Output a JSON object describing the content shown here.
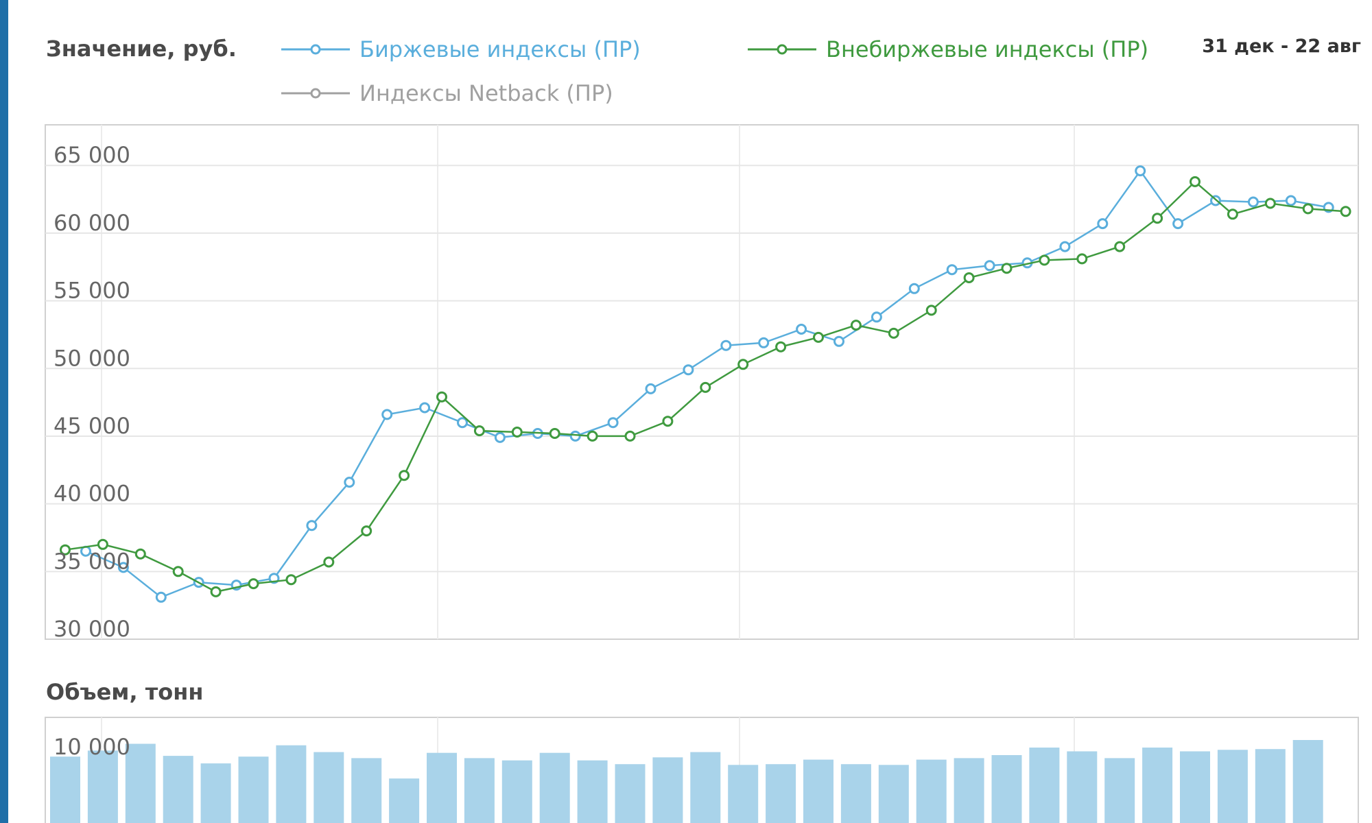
{
  "header": {
    "value_label": "Значение, руб.",
    "date_range": "31 дек - 22 авг"
  },
  "legend": [
    {
      "name": "Биржевые индексы (ПР)",
      "color": "#5aaedc",
      "icon": "circle-line-marker-icon"
    },
    {
      "name": "Внебиржевые индексы (ПР)",
      "color": "#3f9a3f",
      "icon": "circle-line-marker-icon"
    },
    {
      "name": "Индексы Netback (ПР)",
      "color": "#a0a0a0",
      "icon": "circle-line-marker-icon"
    }
  ],
  "volume_label": "Объем, тонн",
  "chart_data": [
    {
      "type": "line",
      "ylim": [
        30000,
        68000
      ],
      "yticks": [
        30000,
        35000,
        40000,
        45000,
        50000,
        55000,
        60000,
        65000
      ],
      "ytick_labels": [
        "30 000",
        "35 000",
        "40 000",
        "45 000",
        "50 000",
        "55 000",
        "60 000",
        "65 000"
      ],
      "grid": true,
      "series": [
        {
          "name": "Биржевые индексы (ПР)",
          "color": "#5aaedc",
          "values": [
            36500,
            35300,
            33100,
            34200,
            34000,
            34500,
            38400,
            41600,
            46600,
            47100,
            46000,
            44900,
            45200,
            45000,
            46000,
            48500,
            49900,
            51700,
            51900,
            52900,
            52000,
            53800,
            55900,
            57300,
            57600,
            57800,
            59000,
            60700,
            64600,
            60700,
            62400,
            62300,
            62400,
            61900
          ]
        },
        {
          "name": "Внебиржевые индексы (ПР)",
          "color": "#3f9a3f",
          "values": [
            36600,
            37000,
            36300,
            35000,
            33500,
            34100,
            34400,
            35700,
            38000,
            42100,
            47900,
            45400,
            45300,
            45200,
            45000,
            45000,
            46100,
            48600,
            50300,
            51600,
            52300,
            53200,
            52600,
            54300,
            56700,
            57400,
            58000,
            58100,
            59000,
            61100,
            63800,
            61400,
            62200,
            61800,
            61600
          ]
        },
        {
          "name": "Индексы Netback (ПР)",
          "color": "#a0a0a0",
          "values": []
        }
      ]
    },
    {
      "type": "bar",
      "ylabel": "Объем, тонн",
      "yticks": [
        10000
      ],
      "ytick_labels": [
        "10 000"
      ],
      "bar_color": "#a9d3ea",
      "ylim": [
        0,
        14000
      ],
      "values": [
        8800,
        9600,
        10500,
        8900,
        7900,
        8800,
        10300,
        9400,
        8600,
        5900,
        9300,
        8600,
        8300,
        9300,
        8300,
        7800,
        8700,
        9400,
        7700,
        7800,
        8400,
        7800,
        7700,
        8400,
        8600,
        9000,
        10000,
        9500,
        8600,
        10000,
        9500,
        9700,
        9800,
        11000
      ]
    }
  ]
}
